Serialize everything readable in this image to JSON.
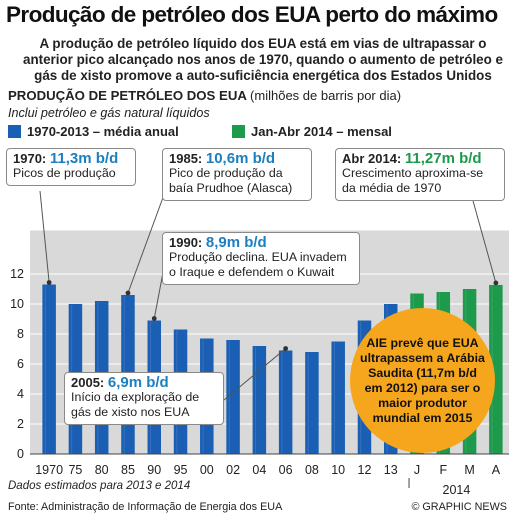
{
  "header": {
    "title": "Produção de petróleo dos EUA perto do máximo",
    "subtitle": "A produção de petróleo líquido dos EUA está em vias de ultrapassar o anterior pico alcançado nos anos de 1970, quando o aumento de petróleo e gás de xisto promove a auto-suficiência energética dos Estados Unidos"
  },
  "section": {
    "heading": "PRODUÇÃO DE PETRÓLEO DOS EUA",
    "unit": "(milhões de barris por dia)",
    "note": "Inclui petróleo e gás natural líquidos"
  },
  "legend": {
    "annual_label": "1970-2013 – média anual",
    "monthly_label": "Jan-Abr 2014 – mensal",
    "annual_color": "#1a5fb4",
    "monthly_color": "#1d9a4c"
  },
  "chart_data": {
    "type": "bar",
    "ylim": [
      0,
      14
    ],
    "yticks": [
      0,
      2,
      4,
      6,
      8,
      10,
      12
    ],
    "tick_labels": [
      "1970",
      "75",
      "80",
      "85",
      "90",
      "95",
      "00",
      "02",
      "04",
      "06",
      "08",
      "10",
      "12",
      "13",
      "J",
      "F",
      "M",
      "A"
    ],
    "extra_label": "2014",
    "series": [
      {
        "name": "1970-2013 – média anual",
        "color": "#1a5fb4",
        "x": [
          1970,
          1975,
          1980,
          1985,
          1990,
          1995,
          2000,
          2002,
          2004,
          2006,
          2008,
          2010,
          2012,
          2013
        ],
        "values": [
          11.3,
          10.0,
          10.2,
          10.6,
          8.9,
          8.3,
          7.7,
          7.6,
          7.2,
          6.9,
          6.8,
          7.5,
          8.9,
          10.0
        ]
      },
      {
        "name": "Jan-Abr 2014 – mensal",
        "color": "#1d9a4c",
        "x": [
          "J",
          "F",
          "M",
          "A"
        ],
        "values": [
          10.7,
          10.8,
          11.0,
          11.27
        ]
      }
    ]
  },
  "callouts": {
    "c1970": {
      "year": "1970:",
      "value": "11,3m b/d",
      "text": "Picos de produção"
    },
    "c1985": {
      "year": "1985:",
      "value": "10,6m b/d",
      "text": "Pico de produção da baía Prudhoe (Alasca)"
    },
    "c1990": {
      "year": "1990:",
      "value": "8,9m b/d",
      "text": "Produção declina. EUA invadem o Iraque e defendem o Kuwait"
    },
    "c2005": {
      "year": "2005:",
      "value": "6,9m b/d",
      "text": "Início da exploração de gás de xisto nos EUA"
    },
    "c2014": {
      "year": "Abr 2014:",
      "value": "11,27m b/d",
      "text": "Crescimento aproxima-se da média de 1970"
    }
  },
  "aie_note": "AIE prevê que EUA ultrapassem a Arábia Saudita (11,7m b/d em 2012) para ser o maior produtor mundial em 2015",
  "footer": {
    "note": "Dados estimados para 2013 e 2014",
    "source": "Fonte: Administração de Informação de Energia dos EUA",
    "credit": "© GRAPHIC NEWS"
  }
}
